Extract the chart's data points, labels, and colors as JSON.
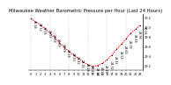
{
  "title": "Milwaukee Weather Barometric Pressure per Hour (Last 24 Hours)",
  "hours": [
    0,
    1,
    2,
    3,
    4,
    5,
    6,
    7,
    8,
    9,
    10,
    11,
    12,
    13,
    14,
    15,
    16,
    17,
    18,
    19,
    20,
    21,
    22,
    23
  ],
  "pressure": [
    30.18,
    30.12,
    30.05,
    29.97,
    29.88,
    29.79,
    29.68,
    29.58,
    29.5,
    29.42,
    29.35,
    29.28,
    29.22,
    29.18,
    29.2,
    29.25,
    29.32,
    29.42,
    29.54,
    29.65,
    29.76,
    29.88,
    29.96,
    30.05
  ],
  "ylim": [
    29.1,
    30.28
  ],
  "yticks": [
    29.2,
    29.4,
    29.6,
    29.8,
    30.0,
    30.2
  ],
  "xticks": [
    0,
    1,
    2,
    3,
    4,
    5,
    6,
    7,
    8,
    9,
    10,
    11,
    12,
    13,
    14,
    15,
    16,
    17,
    18,
    19,
    20,
    21,
    22,
    23
  ],
  "xtick_labels": [
    "0",
    "1",
    "2",
    "3",
    "4",
    "5",
    "6",
    "7",
    "8",
    "9",
    "10",
    "11",
    "12",
    "13",
    "14",
    "15",
    "16",
    "17",
    "18",
    "19",
    "20",
    "21",
    "22",
    "23"
  ],
  "line_color": "#ff0000",
  "marker_color": "#000000",
  "bg_color": "#ffffff",
  "plot_bg_color": "#ffffff",
  "grid_color": "#888888",
  "grid_positions": [
    0,
    4,
    8,
    12,
    16,
    20
  ],
  "title_fontsize": 3.8,
  "tick_fontsize": 2.5,
  "label_fontsize": 2.4
}
